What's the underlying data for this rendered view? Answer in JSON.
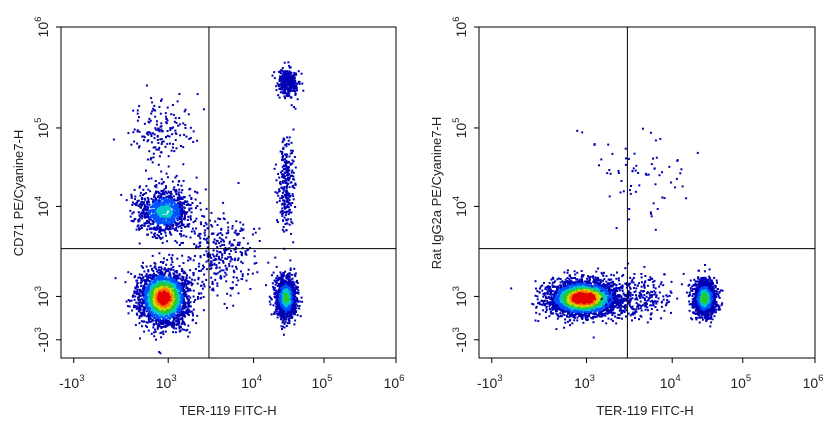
{
  "chart_data": [
    {
      "type": "scatter",
      "subtype": "flow-cytometry-pseudocolor-density",
      "xlabel": "TER-119 FITC-H",
      "ylabel": "CD71 PE/Cyanine7-H",
      "x_scale": "biexponential",
      "y_scale": "biexponential",
      "xlim": [
        -1500,
        1000000
      ],
      "ylim": [
        -2000,
        1000000
      ],
      "x_ticks": [
        {
          "value": -1000,
          "label": "-10",
          "exp": "3"
        },
        {
          "value": 1000,
          "label": "10",
          "exp": "3"
        },
        {
          "value": 10000,
          "label": "10",
          "exp": "4"
        },
        {
          "value": 100000,
          "label": "10",
          "exp": "5"
        },
        {
          "value": 1000000,
          "label": "10",
          "exp": "6"
        }
      ],
      "y_ticks": [
        {
          "value": -1000,
          "label": "-10",
          "exp": "3"
        },
        {
          "value": 1000,
          "label": "10",
          "exp": "3"
        },
        {
          "value": 10000,
          "label": "10",
          "exp": "4"
        },
        {
          "value": 100000,
          "label": "10",
          "exp": "5"
        },
        {
          "value": 1000000,
          "label": "10",
          "exp": "6"
        }
      ],
      "quadrant_gate": {
        "x": 3000,
        "y": 3400
      },
      "populations": [
        {
          "x": 450,
          "y": 850,
          "count": 2600,
          "spread_x": 0.3,
          "spread_y": 0.34
        },
        {
          "x": 500,
          "y": 9000,
          "count": 900,
          "spread_x": 0.35,
          "spread_y": 0.3
        },
        {
          "x": 300,
          "y": 90000,
          "count": 160,
          "spread_x": 0.38,
          "spread_y": 0.4
        },
        {
          "x": 28000,
          "y": 900,
          "count": 1300,
          "spread_x": 0.13,
          "spread_y": 0.26
        },
        {
          "x": 30000,
          "y": 290000,
          "count": 320,
          "spread_x": 0.13,
          "spread_y": 0.18
        },
        {
          "x": 28000,
          "y": 20000,
          "count": 260,
          "spread_x": 0.1,
          "spread_y": 0.6
        },
        {
          "x": 4000,
          "y": 3000,
          "count": 320,
          "spread_x": 0.5,
          "spread_y": 0.5
        }
      ],
      "colormap": [
        "#0000b4",
        "#0050ff",
        "#00c8c8",
        "#28c828",
        "#c8dc00",
        "#ff7800",
        "#e60000"
      ]
    },
    {
      "type": "scatter",
      "subtype": "flow-cytometry-pseudocolor-density",
      "xlabel": "TER-119 FITC-H",
      "ylabel": "Rat IgG2a PE/Cyanine7-H",
      "x_scale": "biexponential",
      "y_scale": "biexponential",
      "xlim": [
        -1500,
        1000000
      ],
      "ylim": [
        -2000,
        1000000
      ],
      "x_ticks": [
        {
          "value": -1000,
          "label": "-10",
          "exp": "3"
        },
        {
          "value": 1000,
          "label": "10",
          "exp": "3"
        },
        {
          "value": 10000,
          "label": "10",
          "exp": "4"
        },
        {
          "value": 100000,
          "label": "10",
          "exp": "5"
        },
        {
          "value": 1000000,
          "label": "10",
          "exp": "6"
        }
      ],
      "y_ticks": [
        {
          "value": -1000,
          "label": "-10",
          "exp": "3"
        },
        {
          "value": 1000,
          "label": "10",
          "exp": "3"
        },
        {
          "value": 10000,
          "label": "10",
          "exp": "4"
        },
        {
          "value": 100000,
          "label": "10",
          "exp": "5"
        },
        {
          "value": 1000000,
          "label": "10",
          "exp": "6"
        }
      ],
      "quadrant_gate": {
        "x": 3000,
        "y": 3400
      },
      "populations": [
        {
          "x": 550,
          "y": 750,
          "count": 3000,
          "spread_x": 0.42,
          "spread_y": 0.22
        },
        {
          "x": 28000,
          "y": 750,
          "count": 1400,
          "spread_x": 0.14,
          "spread_y": 0.22
        },
        {
          "x": 4000,
          "y": 900,
          "count": 260,
          "spread_x": 0.4,
          "spread_y": 0.3
        },
        {
          "x": 4000,
          "y": 30000,
          "count": 70,
          "spread_x": 0.6,
          "spread_y": 0.6
        }
      ],
      "colormap": [
        "#0000b4",
        "#0050ff",
        "#00c8c8",
        "#28c828",
        "#c8dc00",
        "#ff7800",
        "#e60000"
      ]
    }
  ]
}
